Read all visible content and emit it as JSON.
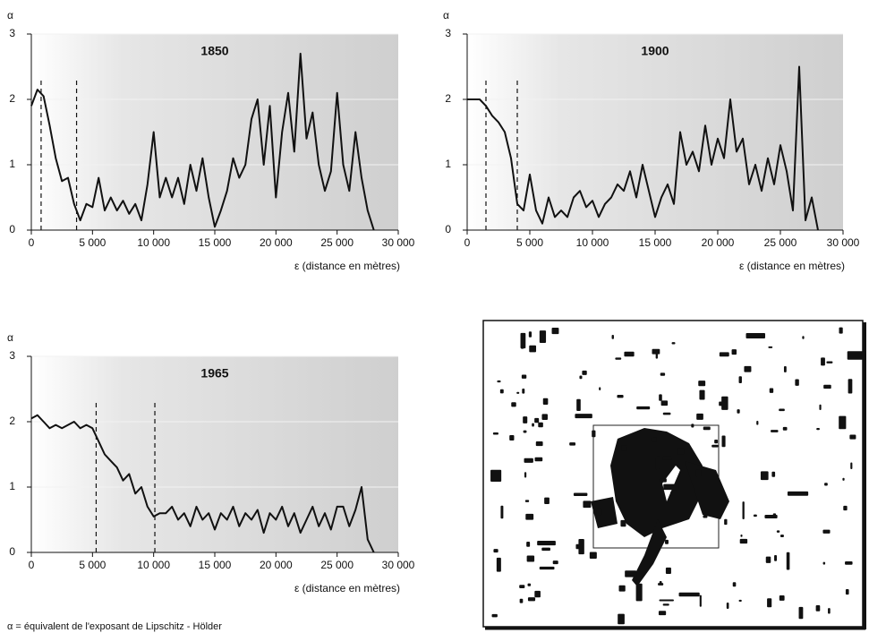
{
  "chart_data": [
    {
      "type": "line",
      "title": "1850",
      "y_label": "α",
      "x_label": "ε  (distance en mètres)",
      "color": "#111111",
      "x": [
        0,
        500,
        1000,
        1500,
        2000,
        2500,
        3000,
        3500,
        4000,
        4500,
        5000,
        5500,
        6000,
        6500,
        7000,
        7500,
        8000,
        8500,
        9000,
        9500,
        10000,
        10500,
        11000,
        11500,
        12000,
        12500,
        13000,
        13500,
        14000,
        14500,
        15000,
        15500,
        16000,
        16500,
        17000,
        17500,
        18000,
        18500,
        19000,
        19500,
        20000,
        20500,
        21000,
        21500,
        22000,
        22500,
        23000,
        23500,
        24000,
        24500,
        25000,
        25500,
        26000,
        26500,
        27000,
        27500,
        28000
      ],
      "values": [
        1.9,
        2.15,
        2.05,
        1.6,
        1.1,
        0.75,
        0.8,
        0.4,
        0.15,
        0.4,
        0.35,
        0.8,
        0.3,
        0.5,
        0.3,
        0.45,
        0.25,
        0.4,
        0.15,
        0.7,
        1.5,
        0.5,
        0.8,
        0.5,
        0.8,
        0.4,
        1.0,
        0.6,
        1.1,
        0.5,
        0.05,
        0.3,
        0.6,
        1.1,
        0.8,
        1.0,
        1.7,
        2.0,
        1.0,
        1.9,
        0.5,
        1.5,
        2.1,
        1.2,
        2.7,
        1.4,
        1.8,
        1.0,
        0.6,
        0.9,
        2.1,
        1.0,
        0.6,
        1.5,
        0.8,
        0.3,
        0
      ],
      "reference_lines": [
        800,
        3700
      ],
      "xlim": [
        0,
        30000
      ],
      "ylim": [
        0,
        3
      ],
      "xticks": [
        0,
        {
          "value": 5000,
          "label": "5 000"
        },
        {
          "value": 10000,
          "label": "10 000"
        },
        {
          "value": 15000,
          "label": "15 000"
        },
        {
          "value": 20000,
          "label": "20 000"
        },
        {
          "value": 25000,
          "label": "25 000"
        },
        {
          "value": 30000,
          "label": "30 000"
        }
      ],
      "yticks": [
        0,
        1,
        2,
        3
      ]
    },
    {
      "type": "line",
      "title": "1900",
      "y_label": "α",
      "x_label": "ε  (distance en mètres)",
      "color": "#111111",
      "x": [
        0,
        500,
        1000,
        1500,
        2000,
        2500,
        3000,
        3500,
        4000,
        4500,
        5000,
        5500,
        6000,
        6500,
        7000,
        7500,
        8000,
        8500,
        9000,
        9500,
        10000,
        10500,
        11000,
        11500,
        12000,
        12500,
        13000,
        13500,
        14000,
        14500,
        15000,
        15500,
        16000,
        16500,
        17000,
        17500,
        18000,
        18500,
        19000,
        19500,
        20000,
        20500,
        21000,
        21500,
        22000,
        22500,
        23000,
        23500,
        24000,
        24500,
        25000,
        25500,
        26000,
        26500,
        27000,
        27500,
        28000
      ],
      "values": [
        2.0,
        2.0,
        2.0,
        1.9,
        1.75,
        1.65,
        1.5,
        1.1,
        0.4,
        0.3,
        0.85,
        0.3,
        0.1,
        0.5,
        0.2,
        0.3,
        0.2,
        0.5,
        0.6,
        0.35,
        0.45,
        0.2,
        0.4,
        0.5,
        0.7,
        0.6,
        0.9,
        0.5,
        1.0,
        0.6,
        0.2,
        0.5,
        0.7,
        0.4,
        1.5,
        1.0,
        1.2,
        0.9,
        1.6,
        1.0,
        1.4,
        1.1,
        2.0,
        1.2,
        1.4,
        0.7,
        1.0,
        0.6,
        1.1,
        0.7,
        1.3,
        0.9,
        0.3,
        2.5,
        0.15,
        0.5,
        0
      ],
      "reference_lines": [
        1500,
        4000
      ],
      "xlim": [
        0,
        30000
      ],
      "ylim": [
        0,
        3
      ],
      "xticks": [
        0,
        {
          "value": 5000,
          "label": "5 000"
        },
        {
          "value": 10000,
          "label": "10 000"
        },
        {
          "value": 15000,
          "label": "15 000"
        },
        {
          "value": 20000,
          "label": "20 000"
        },
        {
          "value": 25000,
          "label": "25 000"
        },
        {
          "value": 30000,
          "label": "30 000"
        }
      ],
      "yticks": [
        0,
        1,
        2,
        3
      ]
    },
    {
      "type": "line",
      "title": "1965",
      "y_label": "α",
      "x_label": "ε  (distance en mètres)",
      "color": "#111111",
      "x": [
        0,
        500,
        1000,
        1500,
        2000,
        2500,
        3000,
        3500,
        4000,
        4500,
        5000,
        5500,
        6000,
        6500,
        7000,
        7500,
        8000,
        8500,
        9000,
        9500,
        10000,
        10500,
        11000,
        11500,
        12000,
        12500,
        13000,
        13500,
        14000,
        14500,
        15000,
        15500,
        16000,
        16500,
        17000,
        17500,
        18000,
        18500,
        19000,
        19500,
        20000,
        20500,
        21000,
        21500,
        22000,
        22500,
        23000,
        23500,
        24000,
        24500,
        25000,
        25500,
        26000,
        26500,
        27000,
        27500,
        28000
      ],
      "values": [
        2.05,
        2.1,
        2.0,
        1.9,
        1.95,
        1.9,
        1.95,
        2.0,
        1.9,
        1.95,
        1.9,
        1.7,
        1.5,
        1.4,
        1.3,
        1.1,
        1.2,
        0.9,
        1.0,
        0.7,
        0.55,
        0.6,
        0.6,
        0.7,
        0.5,
        0.6,
        0.4,
        0.7,
        0.5,
        0.6,
        0.35,
        0.6,
        0.5,
        0.7,
        0.4,
        0.6,
        0.5,
        0.65,
        0.3,
        0.6,
        0.5,
        0.7,
        0.4,
        0.6,
        0.3,
        0.5,
        0.7,
        0.4,
        0.6,
        0.35,
        0.7,
        0.7,
        0.4,
        0.65,
        1.0,
        0.2,
        0
      ],
      "reference_lines": [
        5300,
        10100
      ],
      "xlim": [
        0,
        30000
      ],
      "ylim": [
        0,
        3
      ],
      "xticks": [
        0,
        {
          "value": 5000,
          "label": "5 000"
        },
        {
          "value": 10000,
          "label": "10 000"
        },
        {
          "value": 15000,
          "label": "15 000"
        },
        {
          "value": 20000,
          "label": "20 000"
        },
        {
          "value": 25000,
          "label": "25 000"
        },
        {
          "value": 30000,
          "label": "30 000"
        }
      ],
      "yticks": [
        0,
        1,
        2,
        3
      ]
    }
  ],
  "caption": "α = équivalent de l'exposant de Lipschitz - Hölder"
}
